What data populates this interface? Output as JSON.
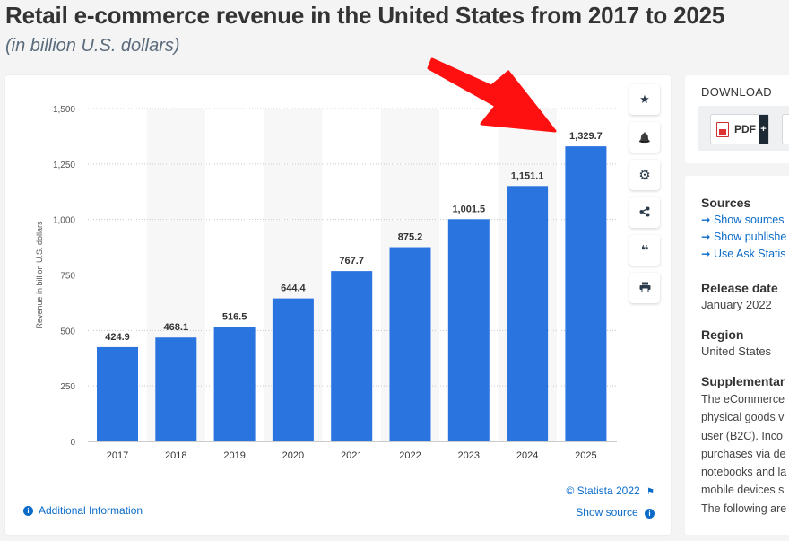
{
  "page": {
    "title": "Retail e-commerce revenue in the United States from 2017 to 2025",
    "subtitle": "(in billion U.S. dollars)"
  },
  "toolbar": {
    "buttons": [
      {
        "name": "favorite-star-icon",
        "glyph": "★"
      },
      {
        "name": "notification-bell-icon",
        "glyph": "🔔"
      },
      {
        "name": "settings-gear-icon",
        "glyph": "⚙"
      },
      {
        "name": "share-icon",
        "glyph": "⋖"
      },
      {
        "name": "cite-quote-icon",
        "glyph": "❝"
      },
      {
        "name": "print-icon",
        "glyph": "⎙"
      }
    ]
  },
  "chart_data": {
    "type": "bar",
    "categories": [
      "2017",
      "2018",
      "2019",
      "2020",
      "2021",
      "2022",
      "2023",
      "2024",
      "2025"
    ],
    "values": [
      424.9,
      468.1,
      516.5,
      644.4,
      767.7,
      875.2,
      1001.5,
      1151.1,
      1329.7
    ],
    "value_labels": [
      "424.9",
      "468.1",
      "516.5",
      "644.4",
      "767.7",
      "875.2",
      "1,001.5",
      "1,151.1",
      "1,329.7"
    ],
    "ylabel": "Revenue in billion U.S. dollars",
    "ylim": [
      0,
      1500
    ],
    "yticks": [
      0,
      250,
      500,
      750,
      1000,
      1250,
      1500
    ],
    "ytick_labels": [
      "0",
      "250",
      "500",
      "750",
      "1,000",
      "1,250",
      "1,500"
    ],
    "bar_color": "#2a74e0",
    "grid": true,
    "annotation": "red arrow pointing to 2025 bar",
    "arrow_color": "#ff1010"
  },
  "chart_footer": {
    "copyright": "© Statista 2022",
    "show_source": "Show source",
    "additional_info": "Additional Information"
  },
  "download": {
    "heading": "DOWNLOAD",
    "pdf_label": "PDF",
    "plus": "+"
  },
  "sidebar": {
    "sources_heading": "Sources",
    "links": [
      "Show sources",
      "Show publishe",
      "Use Ask Statis"
    ],
    "release_heading": "Release date",
    "release_value": "January 2022",
    "region_heading": "Region",
    "region_value": "United States",
    "supplementary_heading": "Supplementar",
    "supplementary_lines": [
      "The eCommerce",
      "physical goods v",
      "user (B2C). Inco",
      "purchases via de",
      "notebooks and la",
      "mobile devices s",
      "The following are"
    ]
  }
}
